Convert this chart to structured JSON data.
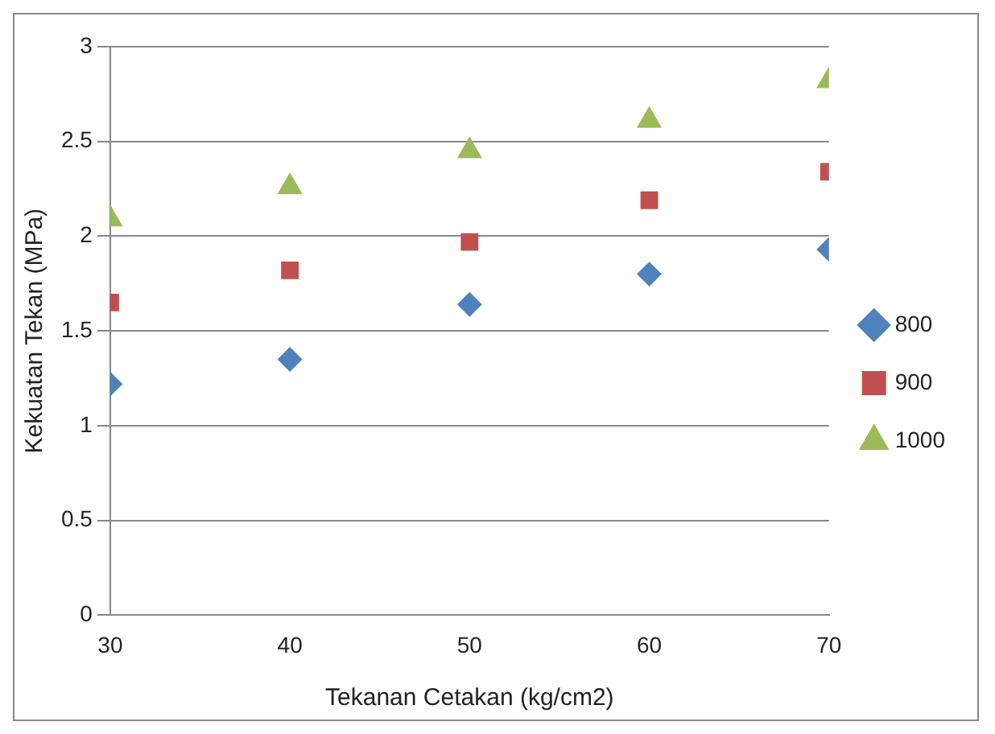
{
  "chart_data": {
    "type": "scatter",
    "xlabel": "Tekanan Cetakan (kg/cm2)",
    "ylabel": "Kekuatan Tekan (MPa)",
    "x": [
      30,
      40,
      50,
      60,
      70
    ],
    "xlim": [
      30,
      70
    ],
    "xticks": [
      30,
      40,
      50,
      60,
      70
    ],
    "ylim": [
      0,
      3
    ],
    "yticks": [
      0,
      0.5,
      1,
      1.5,
      2,
      2.5,
      3
    ],
    "grid": "y",
    "legend": "right",
    "series": [
      {
        "name": "800",
        "color": "#4f81bd",
        "marker": "diamond",
        "values": [
          1.22,
          1.35,
          1.64,
          1.8,
          1.93
        ]
      },
      {
        "name": "900",
        "color": "#c0504d",
        "marker": "square",
        "values": [
          1.65,
          1.82,
          1.97,
          2.19,
          2.34
        ]
      },
      {
        "name": "1000",
        "color": "#9bbb59",
        "marker": "triangle",
        "values": [
          2.09,
          2.26,
          2.45,
          2.61,
          2.82
        ]
      }
    ]
  }
}
